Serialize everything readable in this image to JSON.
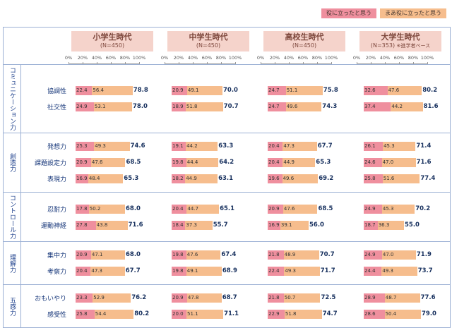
{
  "legend": [
    {
      "label": "役に立ったと思う",
      "color": "#ef8f9e"
    },
    {
      "label": "まあ役に立ったと思う",
      "color": "#f6bd8d"
    }
  ],
  "groups": [
    {
      "name": "コミュニケーション力",
      "rows": [
        "協調性",
        "社交性"
      ]
    },
    {
      "name": "創造力",
      "rows": [
        "発想力",
        "課題設定力",
        "表現力"
      ]
    },
    {
      "name": "コントロール力",
      "rows": [
        "忍耐力",
        "運動神経"
      ]
    },
    {
      "name": "理解力",
      "rows": [
        "集中力",
        "考察力"
      ]
    },
    {
      "name": "五感力",
      "rows": [
        "おもいやり",
        "感受性"
      ]
    }
  ],
  "chart_data": {
    "type": "bar",
    "orientation": "horizontal",
    "stacked": true,
    "xlim": [
      0,
      100
    ],
    "axis_ticks": [
      "0%",
      "20%",
      "40%",
      "60%",
      "80%",
      "100%"
    ],
    "series": [
      "役に立ったと思う",
      "まあ役に立ったと思う"
    ],
    "rows": [
      "協調性",
      "社交性",
      "発想力",
      "課題設定力",
      "表現力",
      "忍耐力",
      "運動神経",
      "集中力",
      "考察力",
      "おもいやり",
      "感受性"
    ],
    "columns": [
      {
        "title": "小学生時代",
        "n": "(N=450)",
        "note": "",
        "data": [
          [
            22.4,
            56.4,
            78.8
          ],
          [
            24.9,
            53.1,
            78.0
          ],
          [
            25.3,
            49.3,
            74.6
          ],
          [
            20.9,
            47.6,
            68.5
          ],
          [
            16.9,
            48.4,
            65.3
          ],
          [
            17.8,
            50.2,
            68.0
          ],
          [
            27.8,
            43.8,
            71.6
          ],
          [
            20.9,
            47.1,
            68.0
          ],
          [
            20.4,
            47.3,
            67.7
          ],
          [
            23.3,
            52.9,
            76.2
          ],
          [
            25.8,
            54.4,
            80.2
          ]
        ]
      },
      {
        "title": "中学生時代",
        "n": "(N=450)",
        "note": "",
        "data": [
          [
            20.9,
            49.1,
            70.0
          ],
          [
            18.9,
            51.8,
            70.7
          ],
          [
            19.1,
            44.2,
            63.3
          ],
          [
            19.8,
            44.4,
            64.2
          ],
          [
            18.2,
            44.9,
            63.1
          ],
          [
            20.4,
            44.7,
            65.1
          ],
          [
            18.4,
            37.3,
            55.7
          ],
          [
            19.8,
            47.6,
            67.4
          ],
          [
            19.8,
            49.1,
            68.9
          ],
          [
            20.9,
            47.8,
            68.7
          ],
          [
            20.0,
            51.1,
            71.1
          ]
        ]
      },
      {
        "title": "高校生時代",
        "n": "(N=450)",
        "note": "",
        "data": [
          [
            24.7,
            51.1,
            75.8
          ],
          [
            24.7,
            49.6,
            74.3
          ],
          [
            20.4,
            47.3,
            67.7
          ],
          [
            20.4,
            44.9,
            65.3
          ],
          [
            19.6,
            49.6,
            69.2
          ],
          [
            20.9,
            47.6,
            68.5
          ],
          [
            16.9,
            39.1,
            56.0
          ],
          [
            21.8,
            48.9,
            70.7
          ],
          [
            22.4,
            49.3,
            71.7
          ],
          [
            21.8,
            50.7,
            72.5
          ],
          [
            22.9,
            51.8,
            74.7
          ]
        ]
      },
      {
        "title": "大学生時代",
        "n": "(N=353)",
        "note": "※進学者ベース",
        "data": [
          [
            32.6,
            47.6,
            80.2
          ],
          [
            37.4,
            44.2,
            81.6
          ],
          [
            26.1,
            45.3,
            71.4
          ],
          [
            24.6,
            47.0,
            71.6
          ],
          [
            25.8,
            51.6,
            77.4
          ],
          [
            24.9,
            45.3,
            70.2
          ],
          [
            18.7,
            36.3,
            55.0
          ],
          [
            24.9,
            47.0,
            71.9
          ],
          [
            24.4,
            49.3,
            73.7
          ],
          [
            28.9,
            48.7,
            77.6
          ],
          [
            28.6,
            50.4,
            79.0
          ]
        ]
      }
    ]
  }
}
